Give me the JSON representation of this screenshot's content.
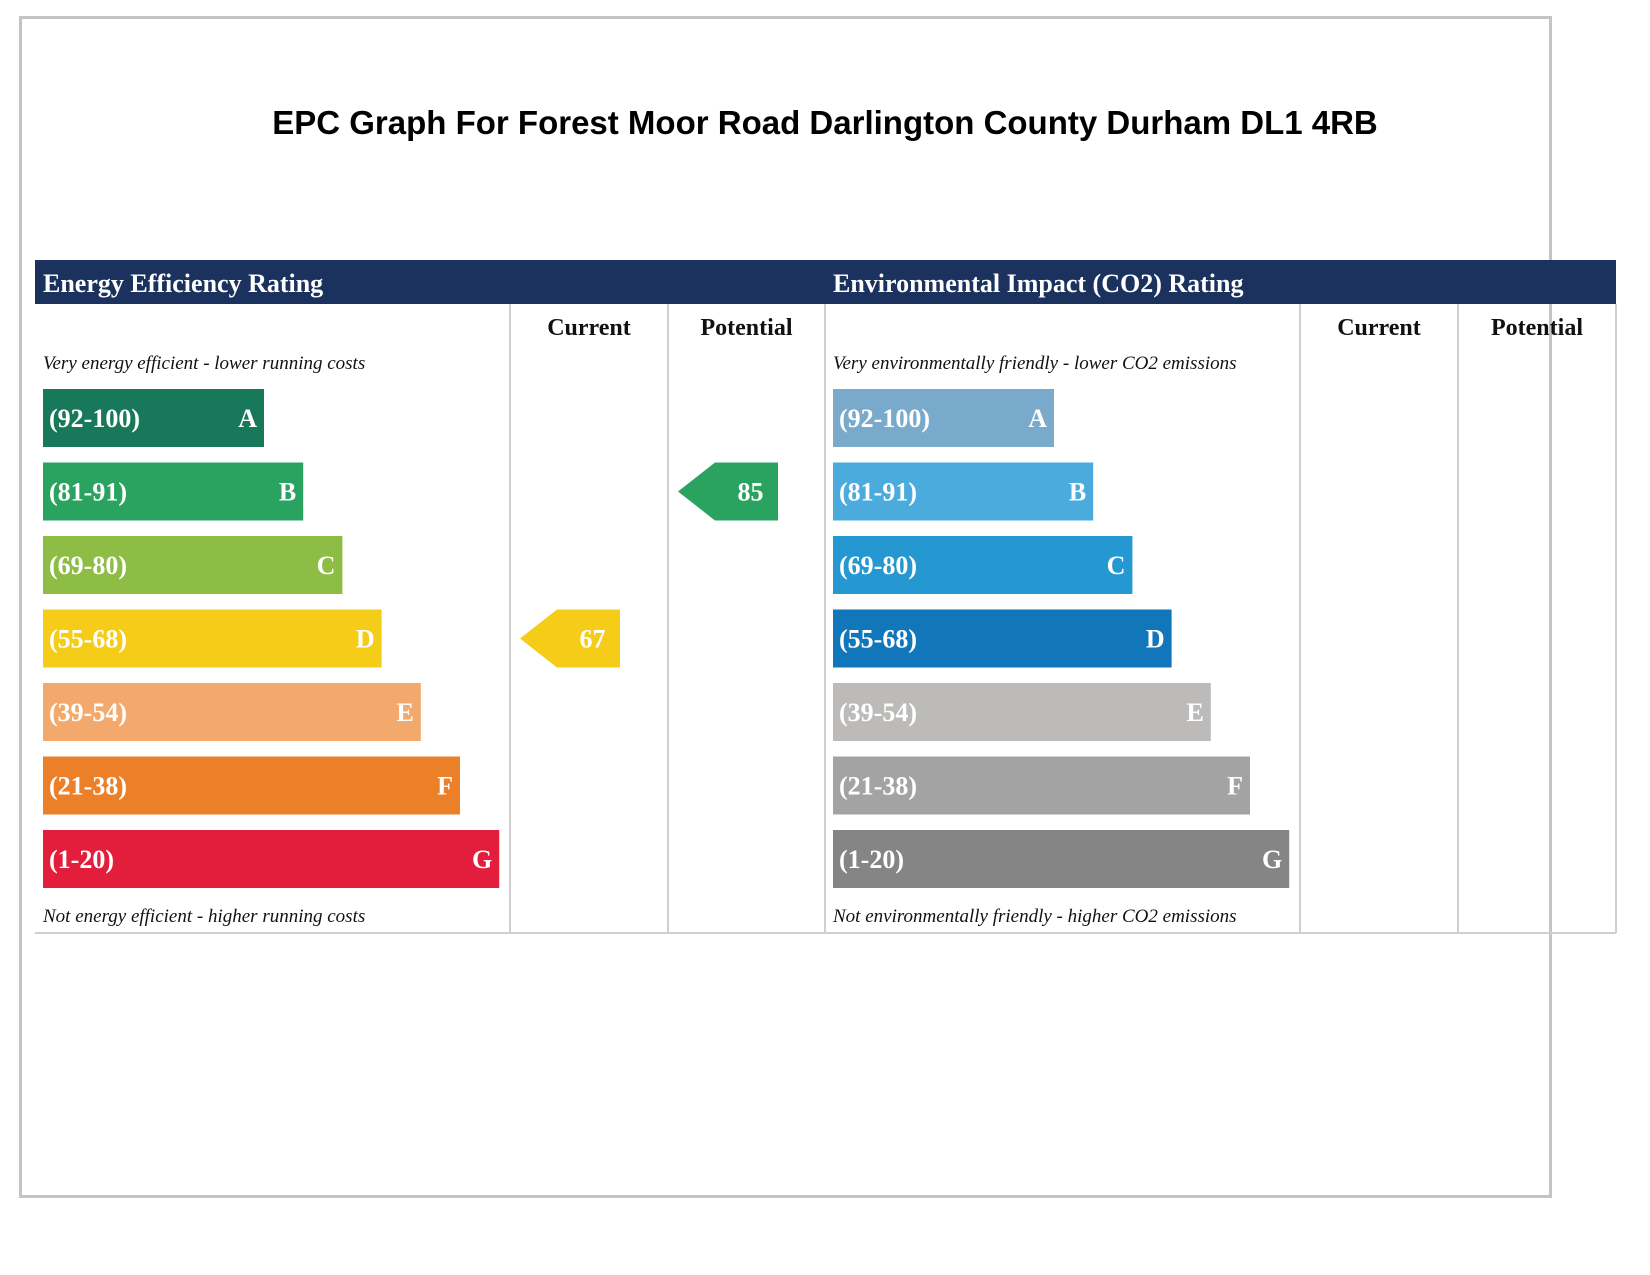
{
  "page": {
    "title": "EPC Graph For Forest Moor Road Darlington County Durham DL1 4RB"
  },
  "colors": {
    "header_bg": "#1b325e",
    "header_text": "#ffffff",
    "grid_line": "#cfcfcf",
    "energy": [
      "#17795a",
      "#2ba360",
      "#8dbd45",
      "#f5cc18",
      "#f2a96b",
      "#ec8028",
      "#e21e3c"
    ],
    "environment": [
      "#7aaacb",
      "#4aabdc",
      "#2698d1",
      "#1276bb",
      "#bcbbb9",
      "#a3a3a3",
      "#858585"
    ]
  },
  "chart_data": [
    {
      "type": "table",
      "title": "Energy Efficiency Rating",
      "column_headers": [
        "Current",
        "Potential"
      ],
      "top_caption": "Very energy efficient - lower running costs",
      "bottom_caption": "Not energy efficient - higher running costs",
      "bands": [
        {
          "range": "(92-100)",
          "letter": "A"
        },
        {
          "range": "(81-91)",
          "letter": "B"
        },
        {
          "range": "(69-80)",
          "letter": "C"
        },
        {
          "range": "(55-68)",
          "letter": "D"
        },
        {
          "range": "(39-54)",
          "letter": "E"
        },
        {
          "range": "(21-38)",
          "letter": "F"
        },
        {
          "range": "(1-20)",
          "letter": "G"
        }
      ],
      "current": {
        "value": 67,
        "band": "D"
      },
      "potential": {
        "value": 85,
        "band": "B"
      }
    },
    {
      "type": "table",
      "title": "Environmental Impact (CO2) Rating",
      "column_headers": [
        "Current",
        "Potential"
      ],
      "top_caption": "Very environmentally friendly - lower CO2 emissions",
      "bottom_caption": "Not environmentally friendly - higher CO2 emissions",
      "bands": [
        {
          "range": "(92-100)",
          "letter": "A"
        },
        {
          "range": "(81-91)",
          "letter": "B"
        },
        {
          "range": "(69-80)",
          "letter": "C"
        },
        {
          "range": "(55-68)",
          "letter": "D"
        },
        {
          "range": "(39-54)",
          "letter": "E"
        },
        {
          "range": "(21-38)",
          "letter": "F"
        },
        {
          "range": "(1-20)",
          "letter": "G"
        }
      ],
      "current": null,
      "potential": null
    }
  ]
}
